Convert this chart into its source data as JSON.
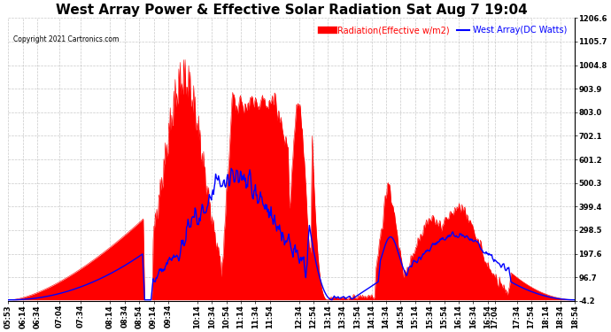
{
  "title": "West Array Power & Effective Solar Radiation Sat Aug 7 19:04",
  "copyright": "Copyright 2021 Cartronics.com",
  "legend_radiation": "Radiation(Effective w/m2)",
  "legend_west": "West Array(DC Watts)",
  "radiation_color": "red",
  "west_color": "blue",
  "bg_color": "#ffffff",
  "plot_bg_color": "#ffffff",
  "grid_color": "#bbbbbb",
  "yticks": [
    -4.2,
    96.7,
    197.6,
    298.5,
    399.4,
    500.3,
    601.2,
    702.1,
    803.0,
    903.9,
    1004.8,
    1105.7,
    1206.6
  ],
  "ylim": [
    -4.2,
    1206.6
  ],
  "xtick_labels": [
    "05:53",
    "06:14",
    "06:34",
    "07:04",
    "07:34",
    "08:14",
    "08:34",
    "08:54",
    "09:14",
    "09:34",
    "10:14",
    "10:34",
    "10:54",
    "11:14",
    "11:34",
    "11:54",
    "12:34",
    "12:54",
    "13:14",
    "13:34",
    "13:54",
    "14:14",
    "14:34",
    "14:54",
    "15:14",
    "15:34",
    "15:54",
    "16:14",
    "16:34",
    "16:54",
    "17:04",
    "17:34",
    "17:54",
    "18:14",
    "18:34",
    "18:54"
  ],
  "title_fontsize": 11,
  "tick_fontsize": 6,
  "legend_fontsize": 7
}
